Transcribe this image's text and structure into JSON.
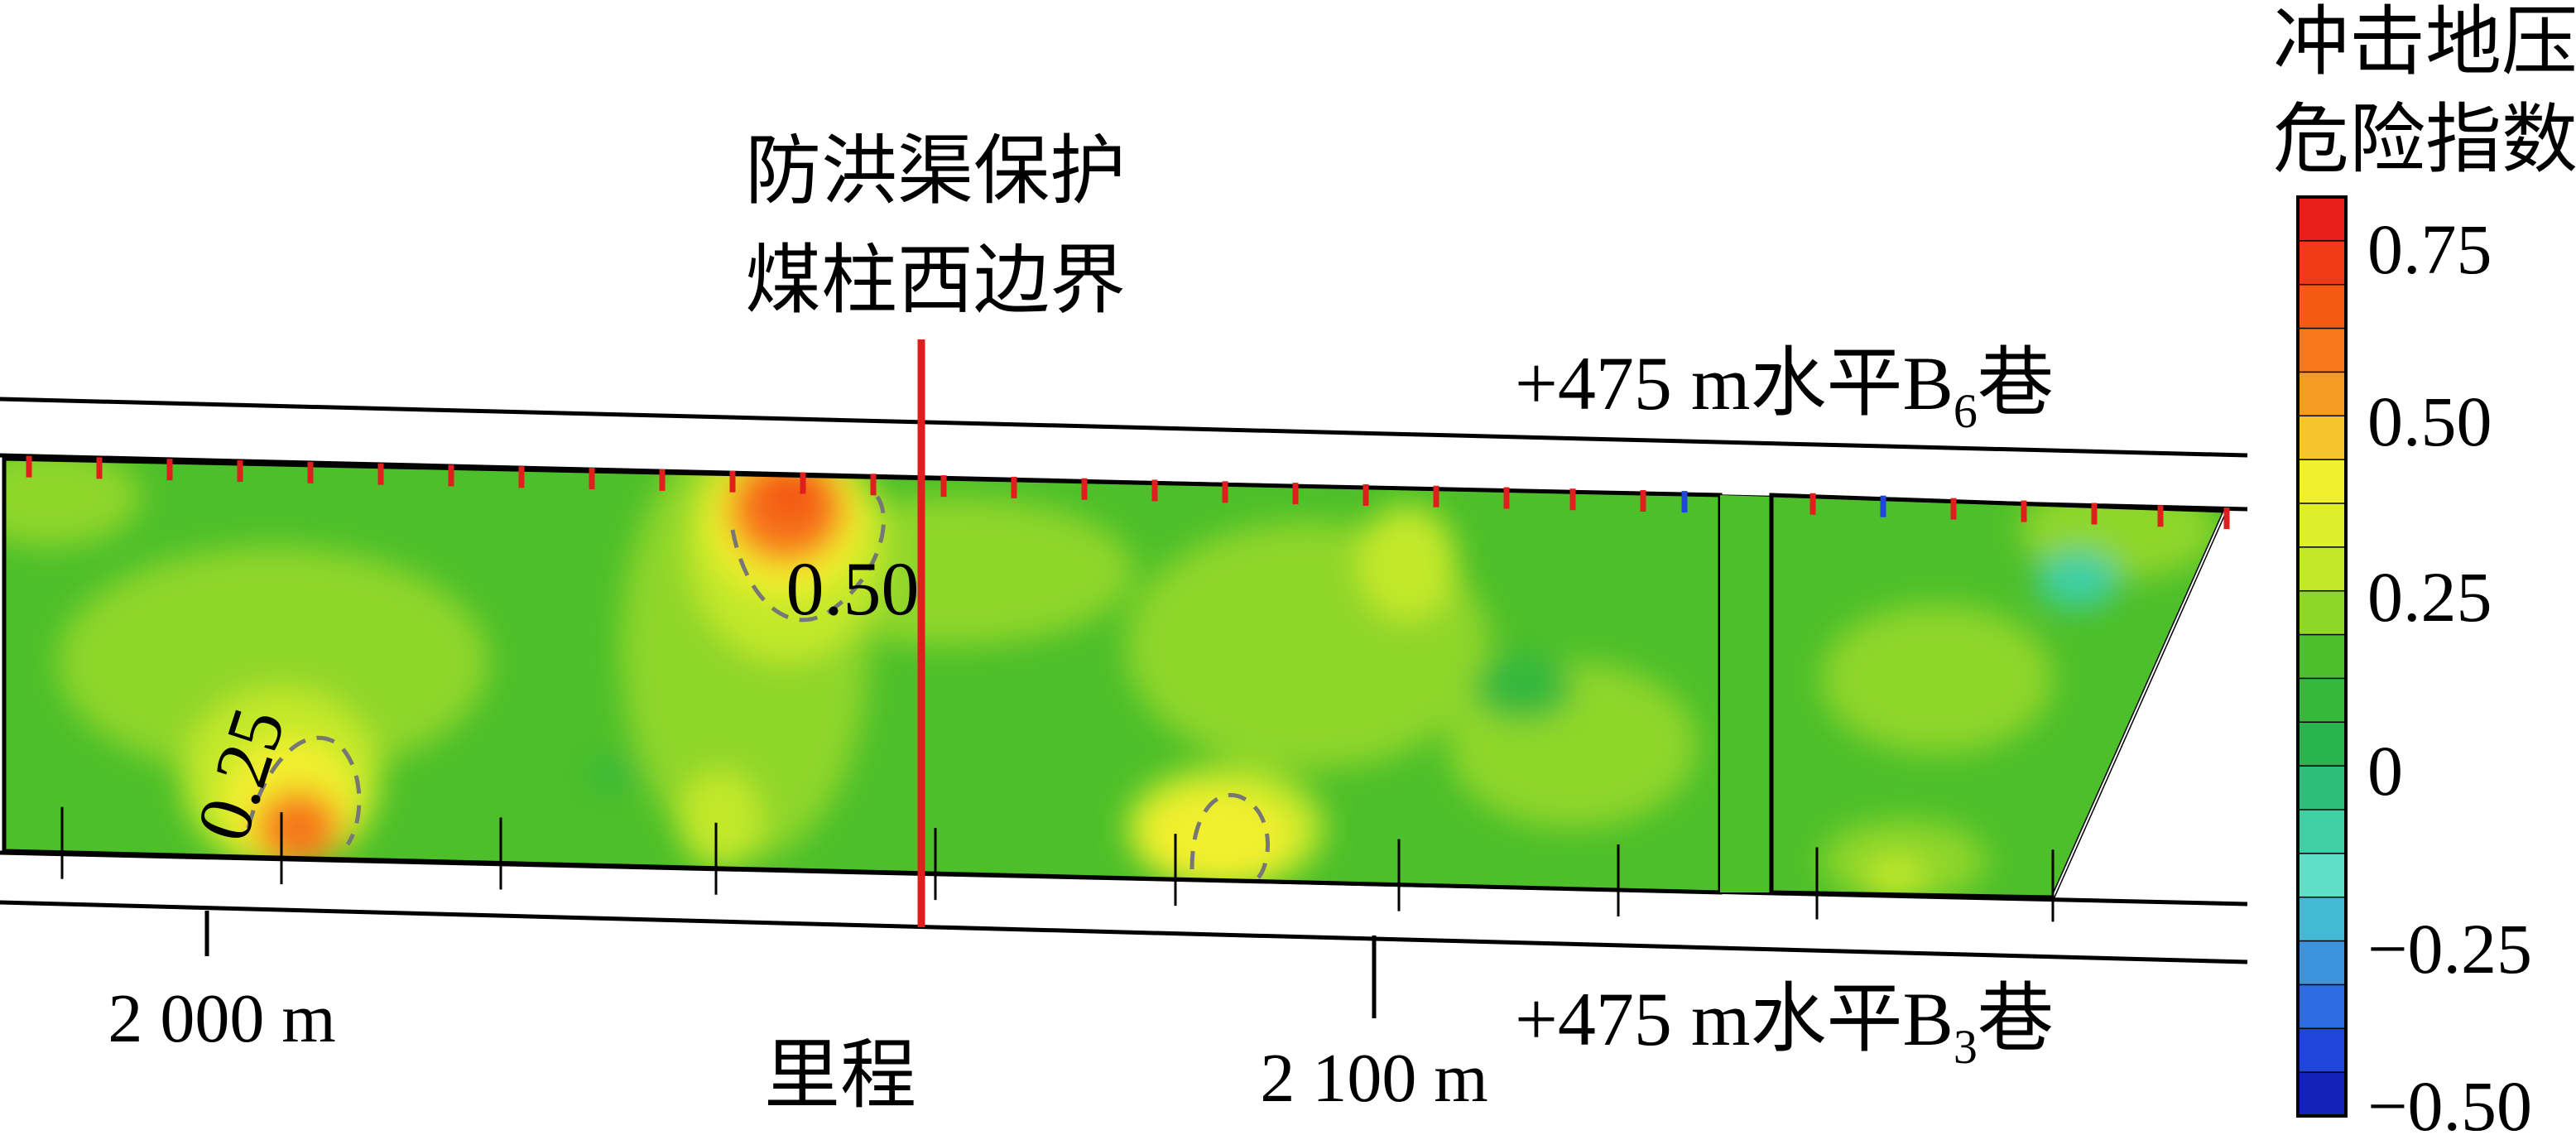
{
  "labels": {
    "boundary": [
      "防洪渠保护",
      "煤柱西边界"
    ],
    "upper_roadway": {
      "prefix": "+475 m水平B",
      "sub": "6",
      "suffix": "巷"
    },
    "lower_roadway": {
      "prefix": "+475 m水平B",
      "sub": "3",
      "suffix": "巷"
    },
    "mileage_left": "2 000 m",
    "mileage_right": "2 100 m",
    "mileage_axis": "里程",
    "contour_050": "0.50",
    "contour_025": "0.25"
  },
  "colorbar": {
    "title": [
      "冲击地压",
      "危险指数"
    ],
    "ticks": [
      "0.75",
      "0.50",
      "0.25",
      "0",
      "−0.25",
      "−0.50"
    ],
    "colors": [
      "#e81f1a",
      "#f03a16",
      "#f45a14",
      "#f6781a",
      "#f79a24",
      "#f7c42c",
      "#f2ef2d",
      "#dcef2a",
      "#c2e82a",
      "#8fd62a",
      "#4dbf2a",
      "#35b83c",
      "#2ab44e",
      "#2cbe7a",
      "#3ecfa5",
      "#5edfc6",
      "#44b9d3",
      "#3c93dd",
      "#2e6be3",
      "#1f45db",
      "#1322b8"
    ]
  },
  "field_colors": {
    "base": "#4dbf2a",
    "light_green": "#8fd62a",
    "yellow_green": "#c2e82a",
    "yellow": "#f2ef2d",
    "orange": "#f6781a",
    "red_orange": "#f45a14",
    "teal": "#3ecfa5",
    "boundary_line": "#e01e1e",
    "marker_red": "#e01e1e",
    "marker_blue": "#1f45db"
  }
}
